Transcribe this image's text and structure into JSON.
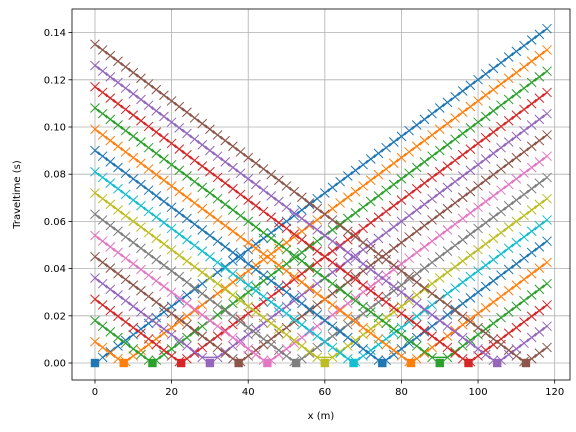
{
  "chart_data": {
    "type": "line",
    "title": "",
    "xlabel": "x (m)",
    "ylabel": "Traveltime (s)",
    "xlim": [
      -6,
      124
    ],
    "ylim": [
      -0.0072,
      0.15
    ],
    "xticks": [
      0,
      20,
      40,
      60,
      80,
      100,
      120
    ],
    "yticks": [
      0.0,
      0.02,
      0.04,
      0.06,
      0.08,
      0.1,
      0.12,
      0.14
    ],
    "ytick_format": 2,
    "grid": true,
    "legend": "none",
    "receiver_spacing_m": 2,
    "receiver_count": 60,
    "velocity_m_per_s": 833,
    "source_marker_time": 0,
    "series": [
      {
        "source_x": 0,
        "color": "#1f77b4"
      },
      {
        "source_x": 7.5,
        "color": "#ff7f0e"
      },
      {
        "source_x": 15,
        "color": "#2ca02c"
      },
      {
        "source_x": 22.5,
        "color": "#d62728"
      },
      {
        "source_x": 30,
        "color": "#9467bd"
      },
      {
        "source_x": 37.5,
        "color": "#8c564b"
      },
      {
        "source_x": 45,
        "color": "#e377c2"
      },
      {
        "source_x": 52.5,
        "color": "#7f7f7f"
      },
      {
        "source_x": 60,
        "color": "#bcbd22"
      },
      {
        "source_x": 67.5,
        "color": "#17becf"
      },
      {
        "source_x": 75,
        "color": "#1f77b4"
      },
      {
        "source_x": 82.5,
        "color": "#ff7f0e"
      },
      {
        "source_x": 90,
        "color": "#2ca02c"
      },
      {
        "source_x": 97.5,
        "color": "#d62728"
      },
      {
        "source_x": 105,
        "color": "#9467bd"
      },
      {
        "source_x": 112.5,
        "color": "#8c564b"
      }
    ]
  }
}
